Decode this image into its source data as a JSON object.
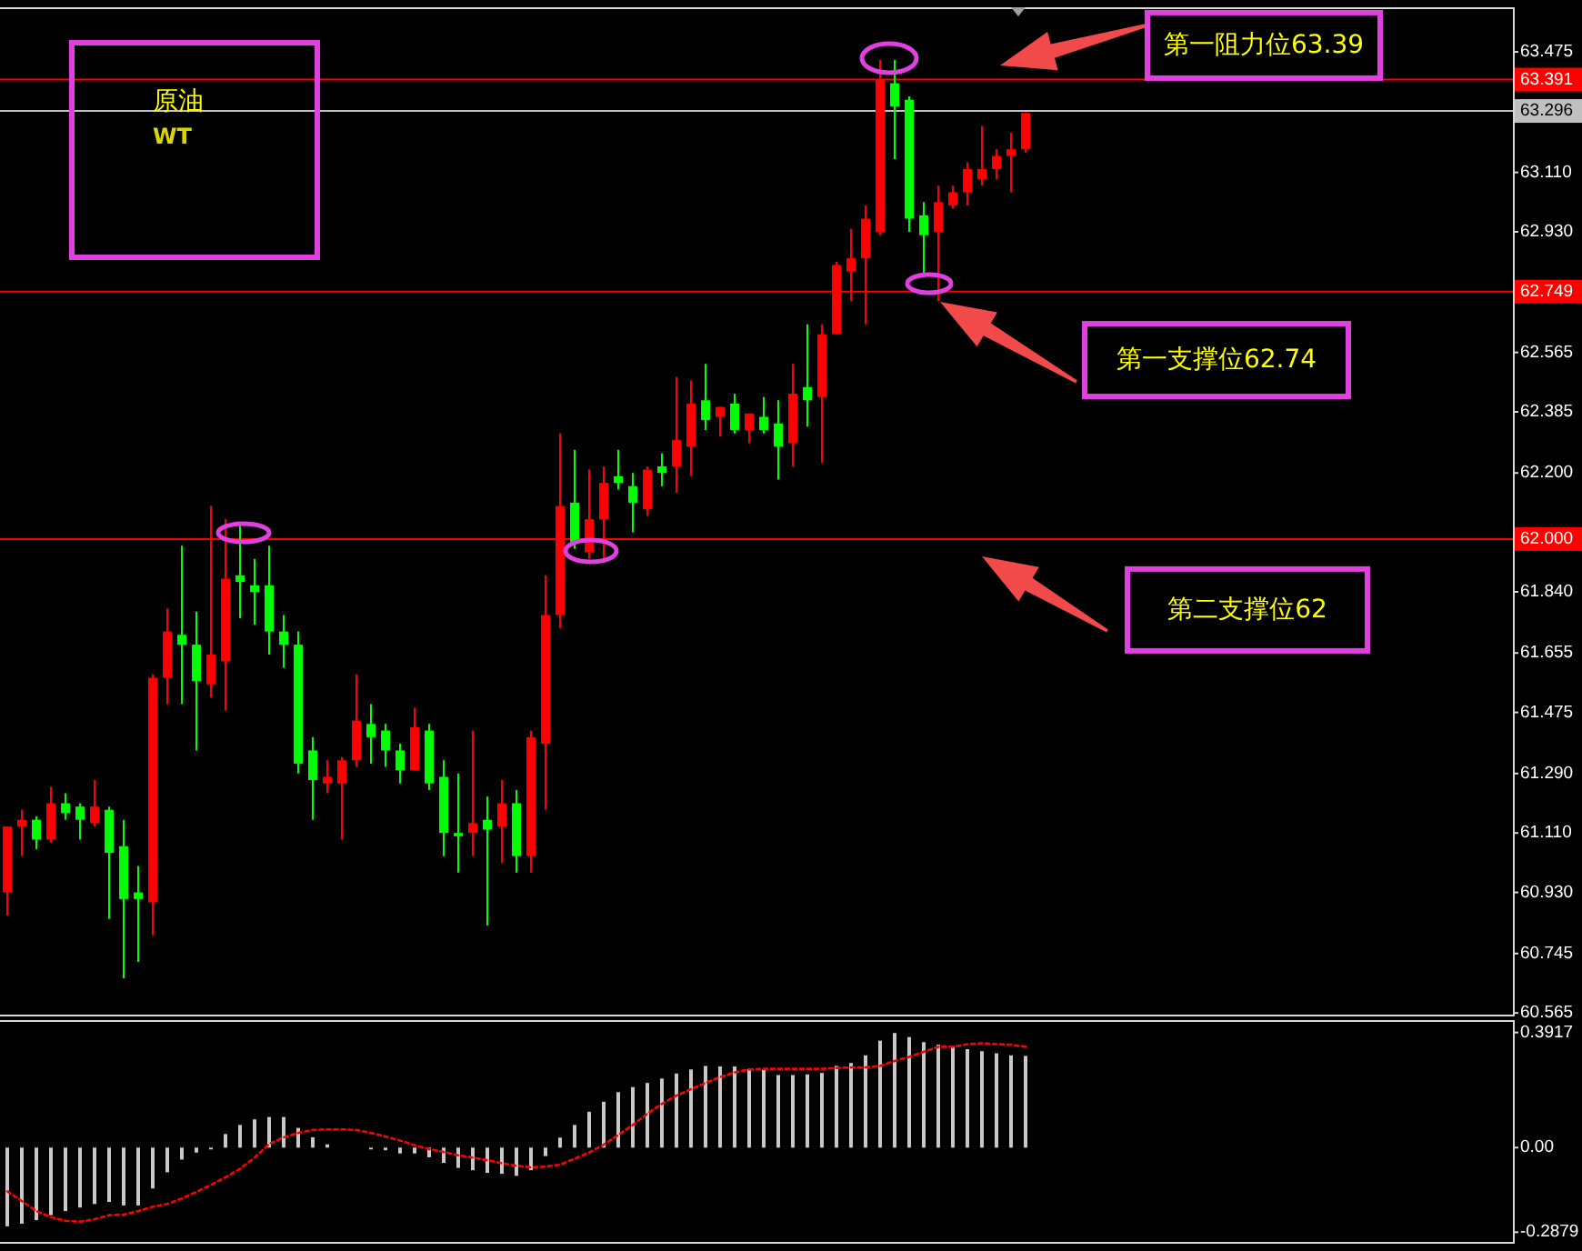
{
  "chart_data": [
    {
      "type": "candlestick",
      "title": "原油",
      "subtitle": "WT",
      "categories": [
        null,
        null,
        null,
        null,
        null,
        null,
        null,
        null,
        null,
        null,
        null,
        null,
        null,
        null,
        null,
        null,
        null,
        null,
        null,
        null,
        null,
        null,
        null,
        null,
        null,
        null,
        null,
        null,
        null,
        null,
        null,
        null,
        null,
        null,
        null,
        null,
        null,
        null,
        null,
        null,
        null,
        null,
        null,
        null,
        null,
        null,
        null,
        null,
        null,
        null,
        null,
        null,
        null,
        null,
        null,
        null,
        null,
        null,
        null,
        null,
        null,
        null,
        null,
        null,
        null,
        null,
        null,
        null,
        null,
        null,
        null,
        null,
        null,
        null,
        null,
        null,
        null,
        null,
        null,
        null,
        null,
        null,
        null,
        null,
        null,
        null,
        null,
        null,
        null,
        null,
        null,
        null,
        null,
        null,
        null,
        null,
        null,
        null,
        null,
        null,
        null,
        null,
        null,
        null
      ],
      "ohlc": [
        [
          60.93,
          61.13,
          60.86,
          61.13
        ],
        [
          61.13,
          61.18,
          61.04,
          61.15
        ],
        [
          61.15,
          61.16,
          61.06,
          61.09
        ],
        [
          61.09,
          61.25,
          61.08,
          61.2
        ],
        [
          61.2,
          61.23,
          61.15,
          61.17
        ],
        [
          61.19,
          61.2,
          61.09,
          61.15
        ],
        [
          61.14,
          61.27,
          61.13,
          61.19
        ],
        [
          61.18,
          61.19,
          60.85,
          61.05
        ],
        [
          61.07,
          61.15,
          60.67,
          60.91
        ],
        [
          60.93,
          61.01,
          60.72,
          60.91
        ],
        [
          60.9,
          61.59,
          60.8,
          61.58
        ],
        [
          61.58,
          61.79,
          61.5,
          61.72
        ],
        [
          61.71,
          61.98,
          61.5,
          61.68
        ],
        [
          61.68,
          61.78,
          61.36,
          61.57
        ],
        [
          61.56,
          62.1,
          61.52,
          61.65
        ],
        [
          61.63,
          62.06,
          61.48,
          61.88
        ],
        [
          61.89,
          62.04,
          61.76,
          61.87
        ],
        [
          61.86,
          61.94,
          61.74,
          61.84
        ],
        [
          61.86,
          61.98,
          61.65,
          61.72
        ],
        [
          61.72,
          61.77,
          61.61,
          61.68
        ],
        [
          61.68,
          61.72,
          61.29,
          61.32
        ],
        [
          61.36,
          61.4,
          61.15,
          61.27
        ],
        [
          61.26,
          61.33,
          61.23,
          61.28
        ],
        [
          61.26,
          61.34,
          61.09,
          61.33
        ],
        [
          61.33,
          61.59,
          61.31,
          61.45
        ],
        [
          61.44,
          61.5,
          61.32,
          61.4
        ],
        [
          61.42,
          61.44,
          61.31,
          61.36
        ],
        [
          61.36,
          61.38,
          61.26,
          61.3
        ],
        [
          61.3,
          61.49,
          61.3,
          61.43
        ],
        [
          61.42,
          61.44,
          61.24,
          61.26
        ],
        [
          61.28,
          61.33,
          61.04,
          61.11
        ],
        [
          61.11,
          61.29,
          60.99,
          61.1
        ],
        [
          61.11,
          61.42,
          61.04,
          61.14
        ],
        [
          61.15,
          61.22,
          60.83,
          61.12
        ],
        [
          61.13,
          61.27,
          61.02,
          61.2
        ],
        [
          61.2,
          61.24,
          60.99,
          61.04
        ],
        [
          61.04,
          61.42,
          60.99,
          61.4
        ],
        [
          61.38,
          61.89,
          61.18,
          61.77
        ],
        [
          61.77,
          62.32,
          61.73,
          62.1
        ],
        [
          62.11,
          62.27,
          61.97,
          61.99
        ],
        [
          61.96,
          62.21,
          61.94,
          62.06
        ],
        [
          62.06,
          62.22,
          61.94,
          62.17
        ],
        [
          62.19,
          62.27,
          62.15,
          62.17
        ],
        [
          62.16,
          62.2,
          62.02,
          62.11
        ],
        [
          62.09,
          62.22,
          62.07,
          62.21
        ],
        [
          62.22,
          62.26,
          62.16,
          62.2
        ],
        [
          62.22,
          62.49,
          62.14,
          62.3
        ],
        [
          62.28,
          62.48,
          62.19,
          62.41
        ],
        [
          62.42,
          62.53,
          62.33,
          62.36
        ],
        [
          62.37,
          62.4,
          62.31,
          62.4
        ],
        [
          62.41,
          62.44,
          62.32,
          62.33
        ],
        [
          62.33,
          62.38,
          62.29,
          62.38
        ],
        [
          62.37,
          62.43,
          62.32,
          62.33
        ],
        [
          62.35,
          62.42,
          62.18,
          62.28
        ],
        [
          62.29,
          62.53,
          62.22,
          62.44
        ],
        [
          62.46,
          62.65,
          62.34,
          62.42
        ],
        [
          62.43,
          62.65,
          62.23,
          62.62
        ],
        [
          62.62,
          62.84,
          62.62,
          62.83
        ],
        [
          62.81,
          62.94,
          62.72,
          62.85
        ],
        [
          62.85,
          63.01,
          62.65,
          62.97
        ],
        [
          62.93,
          63.45,
          62.92,
          63.39
        ],
        [
          63.38,
          63.45,
          63.15,
          63.31
        ],
        [
          63.33,
          63.34,
          62.93,
          62.97
        ],
        [
          62.98,
          63.02,
          62.8,
          62.92
        ],
        [
          62.93,
          63.07,
          62.72,
          63.02
        ],
        [
          63.01,
          63.07,
          63.0,
          63.05
        ],
        [
          63.05,
          63.14,
          63.01,
          63.12
        ],
        [
          63.09,
          63.25,
          63.07,
          63.12
        ],
        [
          63.12,
          63.18,
          63.09,
          63.16
        ],
        [
          63.16,
          63.23,
          63.05,
          63.18
        ],
        [
          63.18,
          63.29,
          63.17,
          63.29
        ],
        null,
        null,
        null,
        null,
        null,
        null,
        null,
        null,
        null,
        null,
        null,
        null,
        null,
        null,
        null,
        null,
        null,
        null,
        null,
        null,
        null,
        null,
        null,
        null,
        null,
        null,
        null,
        null,
        null,
        null,
        null,
        null,
        null
      ],
      "colors": [
        "#ff0000",
        "#ff0000",
        "#00ff00",
        "#ff0000",
        "#00ff00",
        "#00ff00",
        "#ff0000",
        "#00ff00",
        "#00ff00",
        "#00ff00",
        "#ff0000",
        "#ff0000",
        "#00ff00",
        "#00ff00",
        "#ff0000",
        "#ff0000",
        "#00ff00",
        "#00ff00",
        "#00ff00",
        "#00ff00",
        "#00ff00",
        "#00ff00",
        "#ff0000",
        "#ff0000",
        "#ff0000",
        "#00ff00",
        "#00ff00",
        "#00ff00",
        "#ff0000",
        "#00ff00",
        "#00ff00",
        "#00ff00",
        "#ff0000",
        "#00ff00",
        "#ff0000",
        "#00ff00",
        "#ff0000",
        "#ff0000",
        "#ff0000",
        "#00ff00",
        "#ff0000",
        "#ff0000",
        "#00ff00",
        "#00ff00",
        "#ff0000",
        "#00ff00",
        "#ff0000",
        "#ff0000",
        "#00ff00",
        "#ff0000",
        "#00ff00",
        "#ff0000",
        "#00ff00",
        "#00ff00",
        "#ff0000",
        "#00ff00",
        "#ff0000",
        "#ff0000",
        "#ff0000",
        "#ff0000",
        "#ff0000",
        "#00ff00",
        "#00ff00",
        "#00ff00",
        "#ff0000",
        "#ff0000",
        "#ff0000",
        "#ff0000",
        "#ff0000",
        "#ff0000",
        "#ff0000",
        null,
        null,
        null,
        null,
        null,
        null,
        null,
        null,
        null,
        null,
        null,
        null,
        null,
        null,
        null,
        null,
        null,
        null,
        null,
        null,
        null,
        null,
        null,
        null,
        null,
        null,
        null,
        null,
        null,
        null,
        null,
        null,
        null
      ],
      "ylim": [
        60.56,
        63.61
      ],
      "yticks": [
        63.475,
        {
          "value": 63.11,
          "label": "63.110"
        },
        {
          "value": 62.93,
          "label": "62.930"
        },
        62.565,
        62.385,
        {
          "value": 62.2,
          "label": "62.200"
        },
        {
          "value": 61.84,
          "label": "61.840"
        },
        61.655,
        61.475,
        {
          "value": 61.29,
          "label": "61.290"
        },
        {
          "value": 61.11,
          "label": "61.110"
        },
        {
          "value": 60.93,
          "label": "60.930"
        },
        60.745,
        60.565
      ],
      "ref_lines": [
        {
          "axis": "y",
          "value": 63.391,
          "label": "63.391",
          "color": "#ff0000"
        },
        {
          "axis": "y",
          "value": 63.296,
          "label": "63.296",
          "color": "#c0c0c0"
        },
        {
          "axis": "y",
          "value": 62.749,
          "label": "62.749",
          "color": "#ff0000"
        },
        {
          "axis": "y",
          "value": 62.0,
          "label": "62.000",
          "color": "#ff0000"
        }
      ],
      "annotations": [
        {
          "text": "第一阻力位63.39",
          "y": 63.39
        },
        {
          "text": "第一支撑位62.74",
          "y": 62.74
        },
        {
          "text": "第二支撑位62",
          "y": 62
        }
      ]
    },
    {
      "type": "bar",
      "categories": [
        null,
        null,
        null,
        null,
        null,
        null,
        null,
        null,
        null,
        null,
        null,
        null,
        null,
        null,
        null,
        null,
        null,
        null,
        null,
        null,
        null,
        null,
        null,
        null,
        null,
        null,
        null,
        null,
        null,
        null,
        null,
        null,
        null,
        null,
        null,
        null,
        null,
        null,
        null,
        null,
        null,
        null,
        null,
        null,
        null,
        null,
        null,
        null,
        null,
        null,
        null,
        null,
        null,
        null,
        null,
        null,
        null,
        null,
        null,
        null,
        null,
        null,
        null,
        null,
        null,
        null,
        null,
        null,
        null,
        null,
        null,
        null,
        null,
        null,
        null,
        null,
        null,
        null,
        null,
        null,
        null,
        null,
        null,
        null,
        null,
        null,
        null,
        null,
        null,
        null,
        null,
        null,
        null,
        null,
        null,
        null,
        null,
        null,
        null,
        null,
        null,
        null,
        null,
        null
      ],
      "series": [
        {
          "type": "bar",
          "color": "#c8c8c8",
          "values": [
            -0.268,
            -0.259,
            -0.247,
            -0.23,
            -0.216,
            -0.204,
            -0.192,
            -0.185,
            -0.197,
            -0.197,
            -0.139,
            -0.084,
            -0.041,
            -0.017,
            -0.005,
            0.046,
            0.077,
            0.096,
            0.104,
            0.104,
            0.067,
            0.035,
            0.011,
            null,
            null,
            -0.005,
            -0.009,
            -0.02,
            -0.02,
            -0.033,
            -0.052,
            -0.069,
            -0.077,
            -0.086,
            -0.089,
            -0.096,
            -0.077,
            -0.029,
            0.034,
            0.077,
            0.122,
            0.156,
            0.189,
            0.206,
            0.22,
            0.235,
            0.252,
            0.266,
            0.278,
            0.276,
            0.276,
            0.268,
            0.264,
            0.247,
            0.247,
            0.249,
            0.254,
            0.278,
            0.288,
            0.314,
            0.364,
            0.39,
            0.376,
            0.359,
            0.35,
            0.345,
            0.335,
            0.328,
            0.321,
            0.314,
            0.312,
            null,
            null,
            null,
            null,
            null,
            null,
            null,
            null,
            null,
            null,
            null,
            null,
            null,
            null,
            null,
            null,
            null,
            null,
            null,
            null,
            null,
            null,
            null,
            null,
            null,
            null,
            null,
            null,
            null,
            null,
            null,
            null,
            null
          ]
        },
        {
          "type": "line",
          "color": "#ff0000",
          "line_style": "dotted",
          "values": [
            -0.149,
            -0.182,
            -0.216,
            -0.237,
            -0.249,
            -0.252,
            -0.244,
            -0.23,
            -0.228,
            -0.216,
            -0.201,
            -0.192,
            -0.173,
            -0.151,
            -0.127,
            -0.101,
            -0.072,
            -0.034,
            0.012,
            0.035,
            0.05,
            0.06,
            0.062,
            0.062,
            0.06,
            0.05,
            0.038,
            0.024,
            0.008,
            -0.005,
            -0.015,
            -0.026,
            -0.034,
            -0.043,
            -0.053,
            -0.062,
            -0.067,
            -0.065,
            -0.058,
            -0.038,
            -0.017,
            0.01,
            0.043,
            0.077,
            0.115,
            0.149,
            0.177,
            0.199,
            0.22,
            0.24,
            0.256,
            0.266,
            0.268,
            0.268,
            0.268,
            0.268,
            0.268,
            0.271,
            0.273,
            0.273,
            0.278,
            0.295,
            0.309,
            0.326,
            0.343,
            0.343,
            0.352,
            0.355,
            0.352,
            0.35,
            0.343,
            null,
            null,
            null,
            null,
            null,
            null,
            null,
            null,
            null,
            null,
            null,
            null,
            null,
            null,
            null,
            null,
            null,
            null,
            null,
            null,
            null,
            null,
            null,
            null,
            null,
            null,
            null,
            null,
            null,
            null,
            null,
            null,
            null
          ]
        }
      ],
      "ylim": [
        -0.321,
        0.434
      ],
      "yticks": [
        0.3917,
        {
          "value": 0,
          "label": "0.00"
        },
        -0.2879
      ]
    }
  ]
}
